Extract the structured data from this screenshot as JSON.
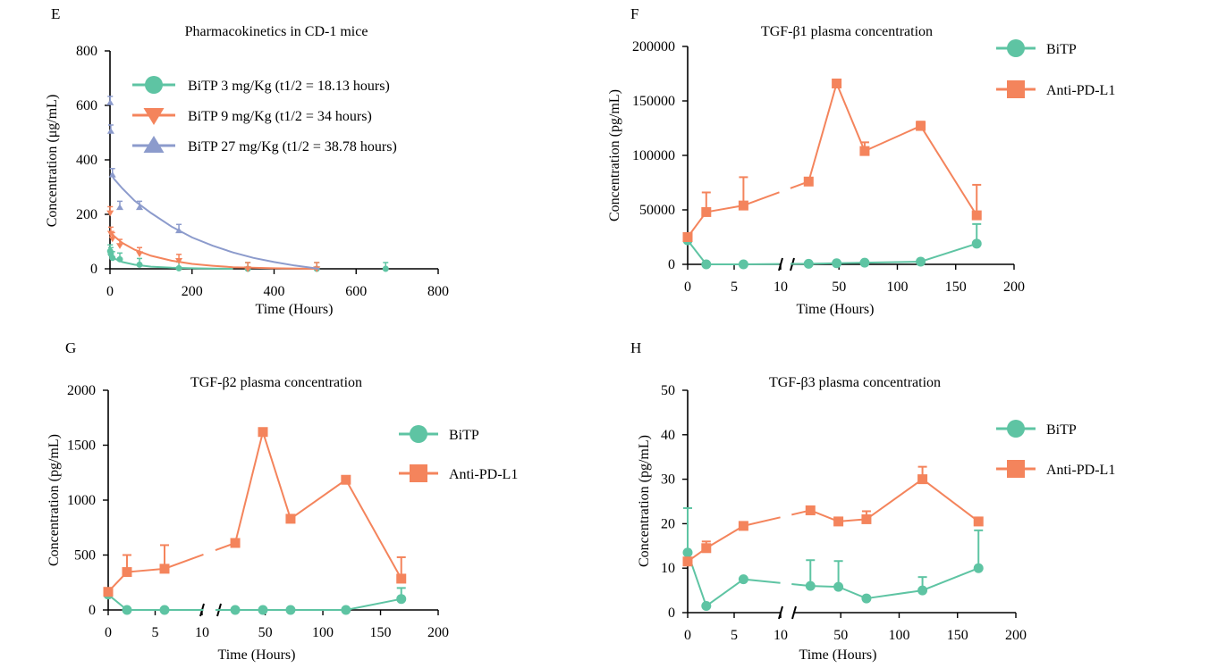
{
  "colors": {
    "green": "#5ec4a3",
    "orange": "#f4845c",
    "blue": "#8c9bcc",
    "axis": "#000000"
  },
  "chart_data": [
    {
      "id": "E",
      "panel_label": "E",
      "type": "scatter",
      "title": "Pharmacokinetics in CD-1 mice",
      "xlabel": "Time (Hours)",
      "ylabel": "Concentration (μg/mL)",
      "xlim": [
        0,
        800
      ],
      "ylim": [
        0,
        800
      ],
      "xticks": [
        0,
        200,
        400,
        600,
        800
      ],
      "yticks": [
        0,
        200,
        400,
        600,
        800
      ],
      "series": [
        {
          "name": "BiTP 3 mg/Kg (t1/2 = 18.13 hours)",
          "color": "green",
          "marker": "circle",
          "points": [
            [
              0.5,
              65
            ],
            [
              2,
              55
            ],
            [
              6,
              40
            ],
            [
              24,
              35
            ],
            [
              72,
              15
            ],
            [
              168,
              2
            ],
            [
              336,
              0
            ],
            [
              504,
              0
            ],
            [
              672,
              0
            ]
          ],
          "curve": [
            [
              0.5,
              50
            ],
            [
              10,
              38
            ],
            [
              30,
              25
            ],
            [
              60,
              15
            ],
            [
              100,
              8
            ],
            [
              150,
              4
            ],
            [
              200,
              2
            ],
            [
              250,
              1
            ],
            [
              300,
              0
            ]
          ]
        },
        {
          "name": "BiTP 9 mg/Kg (t1/2 = 34 hours)",
          "color": "orange",
          "marker": "triangle-down",
          "points": [
            [
              0.5,
              205
            ],
            [
              2,
              130
            ],
            [
              6,
              110
            ],
            [
              24,
              85
            ],
            [
              72,
              55
            ],
            [
              168,
              30
            ],
            [
              336,
              0
            ],
            [
              504,
              0
            ]
          ],
          "curve": [
            [
              0.5,
              140
            ],
            [
              10,
              120
            ],
            [
              30,
              95
            ],
            [
              60,
              70
            ],
            [
              100,
              48
            ],
            [
              150,
              30
            ],
            [
              200,
              18
            ],
            [
              250,
              11
            ],
            [
              300,
              6
            ],
            [
              400,
              2
            ],
            [
              500,
              0
            ]
          ]
        },
        {
          "name": "BiTP 27 mg/Kg (t1/2 = 38.78 hours)",
          "color": "blue",
          "marker": "triangle-up",
          "points": [
            [
              0.5,
              610
            ],
            [
              2,
              505
            ],
            [
              6,
              345
            ],
            [
              24,
              225
            ],
            [
              72,
              225
            ],
            [
              168,
              140
            ]
          ],
          "curve": [
            [
              2,
              350
            ],
            [
              10,
              330
            ],
            [
              30,
              295
            ],
            [
              60,
              250
            ],
            [
              100,
              205
            ],
            [
              150,
              155
            ],
            [
              200,
              115
            ],
            [
              250,
              85
            ],
            [
              300,
              60
            ],
            [
              350,
              40
            ],
            [
              400,
              25
            ],
            [
              450,
              12
            ],
            [
              500,
              2
            ],
            [
              510,
              0
            ]
          ]
        }
      ]
    },
    {
      "id": "F",
      "panel_label": "F",
      "type": "line",
      "title": "TGF-β1 plasma concentration",
      "xlabel": "Time (Hours)",
      "ylabel": "Concentration (pg/mL)",
      "xaxis_segments": [
        {
          "range": [
            0,
            10
          ],
          "ticks": [
            0,
            5,
            10
          ]
        },
        {
          "range": [
            10,
            200
          ],
          "ticks": [
            50,
            100,
            150,
            200
          ]
        }
      ],
      "shared_tick_labels": [
        "0",
        "5",
        "10",
        "50",
        "100",
        "150",
        "200"
      ],
      "ylim": [
        0,
        200000
      ],
      "yticks": [
        0,
        50000,
        100000,
        150000,
        200000
      ],
      "series": [
        {
          "name": "BiTP",
          "color": "green",
          "marker": "circle",
          "points": [
            [
              0,
              22000
            ],
            [
              2,
              0
            ],
            [
              6,
              0
            ],
            [
              24,
              500
            ],
            [
              48,
              1000
            ],
            [
              72,
              1500
            ],
            [
              120,
              2500
            ],
            [
              168,
              19000
            ]
          ],
          "errors": [
            0,
            0,
            0,
            0,
            0,
            0,
            0,
            18000
          ]
        },
        {
          "name": "Anti-PD-L1",
          "color": "orange",
          "marker": "square",
          "points": [
            [
              0,
              25000
            ],
            [
              2,
              48000
            ],
            [
              6,
              54000
            ],
            [
              24,
              76000
            ],
            [
              48,
              166000
            ],
            [
              72,
              104000
            ],
            [
              120,
              127000
            ],
            [
              168,
              45000
            ]
          ],
          "errors": [
            0,
            18000,
            26000,
            0,
            0,
            8000,
            4000,
            28000
          ]
        }
      ]
    },
    {
      "id": "G",
      "panel_label": "G",
      "type": "line",
      "title": "TGF-β2 plasma concentration",
      "xlabel": "Time (Hours)",
      "ylabel": "Concentration (pg/mL)",
      "xaxis_segments": [
        {
          "range": [
            0,
            10
          ],
          "ticks": [
            0,
            5,
            10
          ]
        },
        {
          "range": [
            10,
            200
          ],
          "ticks": [
            50,
            100,
            150,
            200
          ]
        }
      ],
      "shared_tick_labels": [
        "0",
        "5",
        "10",
        "50",
        "100",
        "150",
        "200"
      ],
      "ylim": [
        0,
        2000
      ],
      "yticks": [
        0,
        500,
        1000,
        1500,
        2000
      ],
      "series": [
        {
          "name": "BiTP",
          "color": "green",
          "marker": "circle",
          "points": [
            [
              0,
              140
            ],
            [
              2,
              0
            ],
            [
              6,
              0
            ],
            [
              24,
              0
            ],
            [
              48,
              0
            ],
            [
              72,
              0
            ],
            [
              120,
              0
            ],
            [
              168,
              100
            ]
          ],
          "errors": [
            0,
            0,
            0,
            0,
            0,
            0,
            0,
            100
          ]
        },
        {
          "name": "Anti-PD-L1",
          "color": "orange",
          "marker": "square",
          "points": [
            [
              0,
              165
            ],
            [
              2,
              345
            ],
            [
              6,
              375
            ],
            [
              24,
              610
            ],
            [
              48,
              1620
            ],
            [
              72,
              830
            ],
            [
              120,
              1185
            ],
            [
              168,
              285
            ]
          ],
          "errors": [
            0,
            155,
            215,
            0,
            0,
            0,
            30,
            195
          ]
        }
      ]
    },
    {
      "id": "H",
      "panel_label": "H",
      "type": "line",
      "title": "TGF-β3 plasma concentration",
      "xlabel": "Time (Hours)",
      "ylabel": "Concentration (pg/mL)",
      "xaxis_segments": [
        {
          "range": [
            0,
            10
          ],
          "ticks": [
            0,
            5,
            10
          ]
        },
        {
          "range": [
            10,
            200
          ],
          "ticks": [
            50,
            100,
            150,
            200
          ]
        }
      ],
      "shared_tick_labels": [
        "0",
        "5",
        "10",
        "50",
        "100",
        "150",
        "200"
      ],
      "ylim": [
        0,
        50
      ],
      "yticks": [
        0,
        10,
        20,
        30,
        40,
        50
      ],
      "series": [
        {
          "name": "BiTP",
          "color": "green",
          "marker": "circle",
          "points": [
            [
              0,
              13.5
            ],
            [
              2,
              1.5
            ],
            [
              6,
              7.5
            ],
            [
              24,
              6
            ],
            [
              48,
              5.8
            ],
            [
              72,
              3.2
            ],
            [
              120,
              5
            ],
            [
              168,
              10
            ]
          ],
          "errors": [
            10,
            0,
            0,
            5.8,
            5.8,
            0,
            3,
            8.5
          ]
        },
        {
          "name": "Anti-PD-L1",
          "color": "orange",
          "marker": "square",
          "points": [
            [
              0,
              11.5
            ],
            [
              2,
              14.5
            ],
            [
              6,
              19.5
            ],
            [
              24,
              23
            ],
            [
              48,
              20.5
            ],
            [
              72,
              21
            ],
            [
              120,
              30
            ],
            [
              168,
              20.5
            ]
          ],
          "errors": [
            0,
            1.5,
            0,
            0,
            0,
            1.8,
            2.8,
            0
          ]
        }
      ]
    }
  ]
}
